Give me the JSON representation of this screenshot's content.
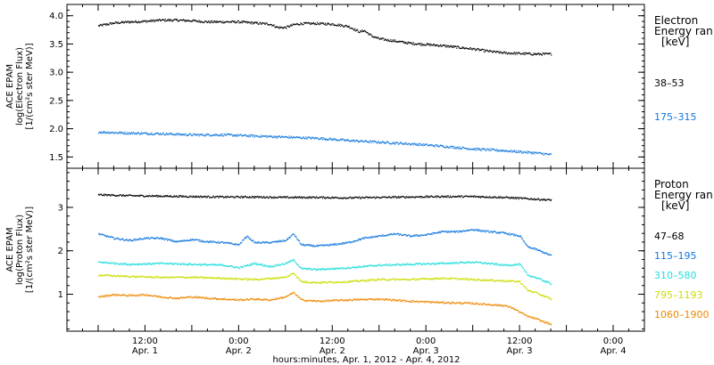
{
  "chart_data": [
    {
      "type": "scatter",
      "panel": "electron",
      "ylabel_lines": [
        "ACE EPAM",
        "log(Electron Flux)",
        "[1/(cm²s ster MeV)]"
      ],
      "ylim": [
        1.3,
        4.2
      ],
      "yticks": [
        "1.5",
        "2.0",
        "2.5",
        "3.0",
        "3.5",
        "4.0"
      ],
      "ytick_values": [
        1.5,
        2.0,
        2.5,
        3.0,
        3.5,
        4.0
      ],
      "legend_title_lines": [
        "Electron",
        "Energy ran",
        "[keV]"
      ],
      "series": [
        {
          "name": "38–53",
          "color": "#000000",
          "x": [
            0,
            4,
            8,
            12,
            16,
            20,
            24,
            28,
            32,
            36,
            40,
            44,
            46,
            48,
            50,
            52,
            56,
            60,
            64,
            67,
            68,
            70,
            72,
            74,
            76,
            80,
            84,
            88,
            92,
            96,
            100,
            104,
            108,
            112,
            116
          ],
          "y": [
            3.83,
            3.88,
            3.9,
            3.91,
            3.93,
            3.93,
            3.92,
            3.9,
            3.9,
            3.9,
            3.88,
            3.86,
            3.8,
            3.8,
            3.85,
            3.87,
            3.87,
            3.86,
            3.82,
            3.72,
            3.75,
            3.65,
            3.6,
            3.58,
            3.56,
            3.52,
            3.5,
            3.48,
            3.45,
            3.42,
            3.38,
            3.35,
            3.34,
            3.33,
            3.33
          ]
        },
        {
          "name": "175–315",
          "color": "#1177dd",
          "x": [
            0,
            8,
            16,
            24,
            32,
            40,
            48,
            56,
            64,
            72,
            80,
            88,
            96,
            104,
            112,
            116
          ],
          "y": [
            1.95,
            1.93,
            1.92,
            1.9,
            1.9,
            1.88,
            1.86,
            1.84,
            1.8,
            1.77,
            1.74,
            1.7,
            1.65,
            1.62,
            1.58,
            1.55
          ]
        }
      ]
    },
    {
      "type": "scatter",
      "panel": "proton",
      "ylabel_lines": [
        "ACE EPAM",
        "log(Proton Flux)",
        "[1/(cm²s ster MeV)]"
      ],
      "ylim": [
        0.15,
        3.9
      ],
      "yticks": [
        "1",
        "2",
        "3"
      ],
      "ytick_values": [
        1,
        2,
        3
      ],
      "legend_title_lines": [
        "Proton",
        "Energy ran",
        "[keV]"
      ],
      "series": [
        {
          "name": "47–68",
          "color": "#000000",
          "x": [
            0,
            8,
            16,
            24,
            32,
            40,
            48,
            56,
            64,
            72,
            80,
            88,
            96,
            104,
            112,
            116
          ],
          "y": [
            3.3,
            3.28,
            3.27,
            3.26,
            3.25,
            3.25,
            3.24,
            3.24,
            3.23,
            3.24,
            3.25,
            3.26,
            3.26,
            3.24,
            3.2,
            3.18
          ]
        },
        {
          "name": "115–195",
          "color": "#1177dd",
          "x": [
            0,
            4,
            8,
            12,
            16,
            20,
            24,
            28,
            32,
            36,
            38,
            40,
            44,
            48,
            50,
            52,
            56,
            60,
            64,
            68,
            72,
            76,
            80,
            84,
            88,
            92,
            96,
            100,
            104,
            108,
            110,
            112,
            116
          ],
          "y": [
            2.4,
            2.3,
            2.25,
            2.3,
            2.3,
            2.22,
            2.27,
            2.22,
            2.2,
            2.15,
            2.35,
            2.2,
            2.2,
            2.25,
            2.4,
            2.15,
            2.12,
            2.15,
            2.2,
            2.3,
            2.35,
            2.4,
            2.35,
            2.38,
            2.45,
            2.45,
            2.5,
            2.45,
            2.42,
            2.35,
            2.1,
            2.05,
            1.9
          ]
        },
        {
          "name": "310–580",
          "color": "#22dddd",
          "x": [
            0,
            8,
            16,
            24,
            32,
            36,
            40,
            44,
            48,
            50,
            52,
            56,
            64,
            72,
            80,
            88,
            96,
            100,
            104,
            108,
            110,
            112,
            116
          ],
          "y": [
            1.75,
            1.7,
            1.72,
            1.7,
            1.68,
            1.62,
            1.72,
            1.65,
            1.72,
            1.8,
            1.6,
            1.58,
            1.62,
            1.68,
            1.7,
            1.72,
            1.75,
            1.72,
            1.68,
            1.7,
            1.45,
            1.4,
            1.25
          ]
        },
        {
          "name": "795–1193",
          "color": "#ccdd00",
          "x": [
            0,
            8,
            16,
            24,
            32,
            40,
            48,
            50,
            52,
            56,
            64,
            72,
            80,
            88,
            96,
            104,
            108,
            110,
            112,
            116
          ],
          "y": [
            1.45,
            1.42,
            1.4,
            1.4,
            1.38,
            1.35,
            1.4,
            1.5,
            1.3,
            1.28,
            1.3,
            1.35,
            1.35,
            1.38,
            1.35,
            1.32,
            1.3,
            1.1,
            1.05,
            0.9
          ]
        },
        {
          "name": "1060–1900",
          "color": "#ee8800",
          "x": [
            0,
            4,
            8,
            12,
            16,
            20,
            24,
            28,
            32,
            36,
            40,
            44,
            48,
            50,
            52,
            56,
            64,
            72,
            80,
            88,
            96,
            104,
            106,
            108,
            110,
            112,
            114,
            116
          ],
          "y": [
            0.95,
            1.0,
            0.98,
            1.0,
            0.95,
            0.92,
            0.95,
            0.92,
            0.9,
            0.88,
            0.9,
            0.88,
            0.95,
            1.05,
            0.88,
            0.85,
            0.88,
            0.9,
            0.85,
            0.82,
            0.8,
            0.75,
            0.7,
            0.6,
            0.5,
            0.45,
            0.38,
            0.32
          ]
        }
      ]
    }
  ],
  "xaxis": {
    "xlim": [
      -8,
      140
    ],
    "tick_positions": [
      12,
      36,
      60,
      84,
      108
    ],
    "tick_labels": [
      [
        "12:00",
        "Apr. 1"
      ],
      [
        "0:00",
        "Apr. 2"
      ],
      [
        "12:00",
        "Apr. 2"
      ],
      [
        "0:00",
        "Apr. 3"
      ],
      [
        "12:00",
        "Apr. 3"
      ],
      [
        "0:00",
        "Apr. 4"
      ]
    ],
    "tick_label_hours": [
      12,
      36,
      60,
      84,
      108,
      132
    ],
    "minor_step_hours": 4,
    "xlabel": "hours:minutes, Apr.  1, 2012 - Apr.  4, 2012"
  },
  "colors": {
    "frame": "#000000",
    "background": "#ffffff"
  }
}
